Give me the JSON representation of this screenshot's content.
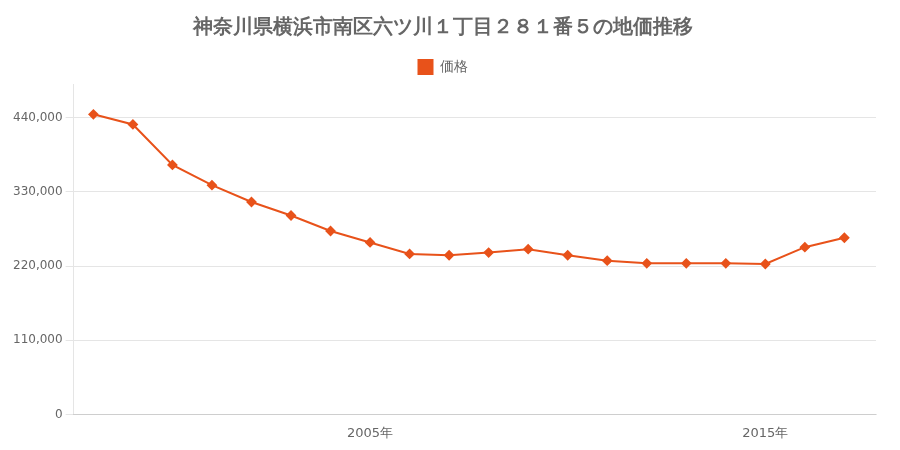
{
  "chart_data": {
    "type": "line",
    "title": "神奈川県横浜市南区六ツ川１丁目２８１番５の地価推移",
    "x": [
      1998,
      1999,
      2000,
      2001,
      2002,
      2003,
      2004,
      2005,
      2006,
      2007,
      2008,
      2009,
      2010,
      2011,
      2012,
      2013,
      2014,
      2015,
      2016,
      2017
    ],
    "series": [
      {
        "name": "価格",
        "color": "#e8521a",
        "marker": "diamond",
        "values": [
          445000,
          430000,
          370000,
          340000,
          315000,
          295000,
          272000,
          255000,
          238000,
          236000,
          240000,
          245000,
          236000,
          228000,
          224000,
          224000,
          224000,
          223000,
          248000,
          262000
        ]
      }
    ],
    "xlim": [
      1997.5,
      2017.8
    ],
    "xticks": [
      {
        "value": 2005,
        "label": "2005年"
      },
      {
        "value": 2015,
        "label": "2015年"
      }
    ],
    "ylim": [
      0,
      490000
    ],
    "yticks": [
      0,
      {
        "value": 110000,
        "label": "110,000"
      },
      {
        "value": 220000,
        "label": "220,000"
      },
      {
        "value": 330000,
        "label": "330,000"
      },
      {
        "value": 440000,
        "label": "440,000"
      }
    ],
    "grid": "y",
    "legend": "top"
  }
}
